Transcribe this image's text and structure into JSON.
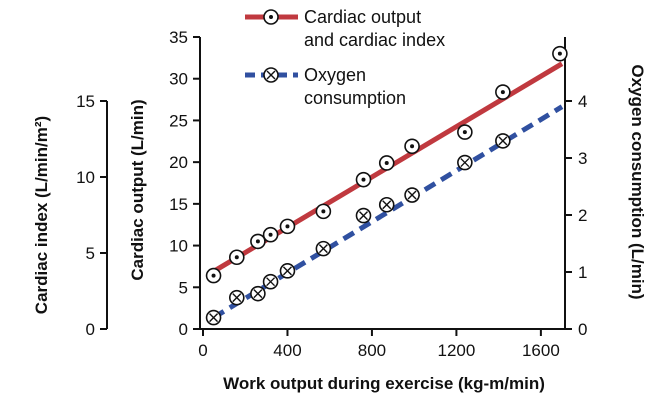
{
  "chart_data": {
    "type": "line",
    "xlabel": "Work output during exercise (kg-m/min)",
    "x_ticks": [
      "0",
      "400",
      "800",
      "1200",
      "1600"
    ],
    "xlim": [
      0,
      1700
    ],
    "left_axis_inner": {
      "label": "Cardiac output (L/min)",
      "ticks": [
        "0",
        "5",
        "10",
        "15",
        "20",
        "25",
        "30",
        "35"
      ],
      "ylim": [
        0,
        35
      ]
    },
    "left_axis_outer": {
      "label": "Cardiac index (L/min/m²)",
      "ticks": [
        "0",
        "5",
        "10",
        "15"
      ],
      "ylim": [
        0,
        15
      ]
    },
    "right_axis": {
      "label": "Oxygen consumption (L/min)",
      "ticks": [
        "0",
        "1",
        "2",
        "3",
        "4"
      ],
      "ylim": [
        0,
        4.8
      ]
    },
    "legend_position": "top-center",
    "series": [
      {
        "name": "Cardiac output and cardiac index",
        "color": "#c0393f",
        "marker": "dot-circle",
        "axis": "left_axis_inner",
        "fit_line": {
          "x": [
            50,
            1700
          ],
          "y": [
            6.9,
            31.8
          ]
        },
        "points": [
          {
            "x": 50,
            "y": 6.4
          },
          {
            "x": 160,
            "y": 8.6
          },
          {
            "x": 260,
            "y": 10.5
          },
          {
            "x": 320,
            "y": 11.3
          },
          {
            "x": 400,
            "y": 12.3
          },
          {
            "x": 570,
            "y": 14.1
          },
          {
            "x": 760,
            "y": 17.9
          },
          {
            "x": 870,
            "y": 19.9
          },
          {
            "x": 990,
            "y": 21.9
          },
          {
            "x": 1240,
            "y": 23.6
          },
          {
            "x": 1420,
            "y": 28.4
          },
          {
            "x": 1690,
            "y": 33.0
          }
        ]
      },
      {
        "name": "Oxygen consumption",
        "color": "#3050a0",
        "marker": "x-circle",
        "axis": "right_axis",
        "fit_line": {
          "x": [
            50,
            1700
          ],
          "y": [
            0.2,
            3.9
          ]
        },
        "points": [
          {
            "x": 50,
            "y": 0.2
          },
          {
            "x": 160,
            "y": 0.55
          },
          {
            "x": 260,
            "y": 0.62
          },
          {
            "x": 320,
            "y": 0.83
          },
          {
            "x": 400,
            "y": 1.02
          },
          {
            "x": 570,
            "y": 1.41
          },
          {
            "x": 760,
            "y": 1.99
          },
          {
            "x": 870,
            "y": 2.18
          },
          {
            "x": 990,
            "y": 2.35
          },
          {
            "x": 1240,
            "y": 2.92
          },
          {
            "x": 1420,
            "y": 3.3
          }
        ]
      }
    ]
  },
  "legend": {
    "series_1_line_1": "Cardiac output",
    "series_1_line_2": "and cardiac index",
    "series_2_line_1": "Oxygen",
    "series_2_line_2": "consumption"
  },
  "axis_titles": {
    "x": "Work output during exercise (kg-m/min)",
    "left_inner": "Cardiac output (L/min)",
    "left_outer": "Cardiac index (L/min/m²)",
    "right": "Oxygen consumption (L/min)"
  }
}
